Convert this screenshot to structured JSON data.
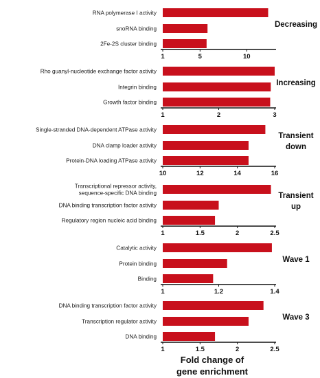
{
  "chart_data": {
    "type": "bar",
    "orientation": "horizontal",
    "xlabel": "Fold change of gene enrichment",
    "colors": {
      "bar": "#c8101c",
      "text": "#111111"
    },
    "panels": [
      {
        "group_label": [
          "Decreasing"
        ],
        "categories": [
          [
            "RNA polymerase I activity"
          ],
          [
            "snoRNA binding"
          ],
          [
            "2Fe-2S cluster binding"
          ]
        ],
        "values": [
          12.3,
          5.8,
          5.7
        ],
        "xlim": [
          1,
          13
        ],
        "xticks": [
          1,
          5,
          10
        ]
      },
      {
        "group_label": [
          "Increasing"
        ],
        "categories": [
          [
            "Rho guanyl-nucleotide exchange factor activity"
          ],
          [
            "Integrin binding"
          ],
          [
            "Growth factor binding"
          ]
        ],
        "values": [
          3.0,
          2.93,
          2.92
        ],
        "xlim": [
          1,
          3
        ],
        "xticks": [
          1,
          2,
          3
        ]
      },
      {
        "group_label": [
          "Transient",
          "down"
        ],
        "categories": [
          [
            "Single-stranded DNA-dependent ATPase activity"
          ],
          [
            "DNA clamp loader activity"
          ],
          [
            "Protein-DNA loading ATPase activity"
          ]
        ],
        "values": [
          15.5,
          14.6,
          14.6
        ],
        "xlim": [
          10,
          16
        ],
        "xticks": [
          10,
          12,
          14,
          16
        ]
      },
      {
        "group_label": [
          "Transient",
          "up"
        ],
        "categories": [
          [
            "Transcriptional repressor activity,",
            "sequence-specific DNA binding"
          ],
          [
            "DNA binding transcription factor activity"
          ],
          [
            "Regulatory region nucleic acid binding"
          ]
        ],
        "values": [
          2.45,
          1.75,
          1.7
        ],
        "xlim": [
          1,
          2.5
        ],
        "xticks": [
          1,
          1.5,
          2,
          2.5
        ]
      },
      {
        "group_label": [
          "Wave 1"
        ],
        "categories": [
          [
            "Catalytic activity"
          ],
          [
            "Protein binding"
          ],
          [
            "Binding"
          ]
        ],
        "values": [
          1.39,
          1.23,
          1.18
        ],
        "xlim": [
          1,
          1.4
        ],
        "xticks": [
          1,
          1.2,
          1.4
        ]
      },
      {
        "group_label": [
          "Wave 3"
        ],
        "categories": [
          [
            "DNA binding transcription factor activity"
          ],
          [
            "Transcription regulator activity"
          ],
          [
            "DNA binding"
          ]
        ],
        "values": [
          2.35,
          2.15,
          1.7
        ],
        "xlim": [
          1,
          2.5
        ],
        "xticks": [
          1,
          1.5,
          2,
          2.5
        ]
      }
    ]
  }
}
